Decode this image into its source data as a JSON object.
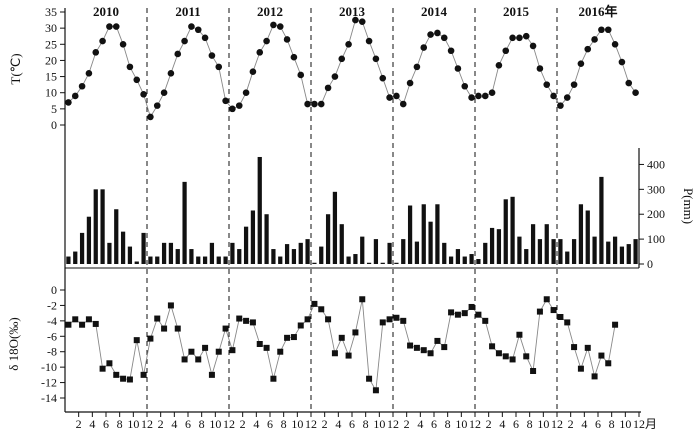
{
  "chart_data": [
    {
      "type": "scatter",
      "ylabel": "T(℃)",
      "ylim": [
        0,
        35
      ],
      "yticks": [
        "0",
        "5",
        "10",
        "15",
        "20",
        "25",
        "30",
        "35"
      ],
      "year_labels": [
        "2010",
        "2011",
        "2012",
        "2013",
        "2014",
        "2015",
        "2016年"
      ],
      "marker_color": "#111111",
      "line_color": "#888888",
      "series": [
        {
          "values": [
            7,
            9,
            12,
            16,
            22.5,
            26,
            30.5,
            30.5,
            25,
            18,
            14,
            9.5,
            2.5,
            6,
            10,
            16,
            22,
            26,
            30.5,
            29.5,
            27,
            21.5,
            18,
            7.5,
            5,
            6,
            10,
            16.5,
            22.5,
            26,
            31,
            30.5,
            26.5,
            21,
            15.5,
            6.5,
            6.5,
            6.5,
            11.5,
            15,
            20.5,
            25,
            32.5,
            32,
            26,
            20.5,
            14.5,
            8.5,
            9,
            6.5,
            13,
            18,
            24,
            28,
            28.5,
            27,
            23,
            17.5,
            12,
            8.5,
            9,
            9,
            10,
            18.5,
            23,
            27,
            27,
            27.5,
            24.5,
            17.5,
            12.5,
            9,
            6,
            8.5,
            12.5,
            19,
            23.5,
            26.5,
            29.5,
            29.5,
            25,
            19.5,
            13,
            10
          ]
        }
      ]
    },
    {
      "type": "bar",
      "ylabel": "P(mm)",
      "ylim": [
        0,
        450
      ],
      "yticks": [
        "0",
        "100",
        "200",
        "300",
        "400"
      ],
      "bar_color": "#111111",
      "series": [
        {
          "values": [
            30,
            50,
            125,
            190,
            300,
            300,
            85,
            220,
            130,
            70,
            10,
            125,
            30,
            30,
            85,
            85,
            60,
            330,
            60,
            30,
            30,
            85,
            30,
            30,
            85,
            60,
            150,
            215,
            430,
            200,
            60,
            30,
            80,
            60,
            85,
            100,
            5,
            70,
            200,
            290,
            160,
            30,
            40,
            110,
            5,
            100,
            5,
            85,
            5,
            100,
            235,
            90,
            240,
            170,
            240,
            85,
            30,
            60,
            30,
            40,
            20,
            85,
            145,
            140,
            260,
            270,
            110,
            60,
            160,
            100,
            160,
            100,
            100,
            50,
            100,
            240,
            215,
            110,
            350,
            90,
            110,
            70,
            80,
            100
          ]
        }
      ]
    },
    {
      "type": "line",
      "ylabel": "δ 18O(‰)",
      "ylim": [
        -14,
        0
      ],
      "yticks": [
        "0",
        "-2",
        "-4",
        "-6",
        "-8",
        "-10",
        "-12",
        "-14"
      ],
      "xticks": [
        "2",
        "4",
        "6",
        "8",
        "10",
        "12",
        "2",
        "4",
        "6",
        "8",
        "10",
        "12",
        "2",
        "4",
        "6",
        "8",
        "10",
        "12",
        "2",
        "4",
        "6",
        "8",
        "10",
        "12",
        "2",
        "4",
        "6",
        "8",
        "10",
        "12",
        "2",
        "4",
        "6",
        "8",
        "10",
        "12",
        "2",
        "4",
        "6",
        "8",
        "10",
        "12"
      ],
      "xunit": "月",
      "marker_color": "#111111",
      "line_color": "#888888",
      "series": [
        {
          "values": [
            -4.5,
            -3.8,
            -4.5,
            -3.8,
            -4.4,
            -10.2,
            -9.5,
            -11,
            -11.5,
            -11.6,
            -6.5,
            -11,
            -6.3,
            -3.7,
            -5,
            -2,
            -5,
            -9,
            -8,
            -9,
            -7.5,
            -11,
            -8,
            -5,
            -7.8,
            -3.7,
            -4,
            -4.2,
            -7,
            -7.5,
            -11.5,
            -8,
            -6.2,
            -6.1,
            -4.6,
            -3.8,
            -1.8,
            -2.5,
            -3.8,
            -8.2,
            -6.2,
            -8.5,
            -5.5,
            -1.2,
            -11.5,
            -13,
            -4.2,
            -3.8,
            -3.6,
            -4,
            -7.2,
            -7.5,
            -7.8,
            -8.2,
            -6.6,
            -7.4,
            -2.9,
            -3.2,
            -3,
            -2.2,
            -3.2,
            -4,
            -7.3,
            -8.2,
            -8.6,
            -9,
            -5.8,
            -8.6,
            -10.5,
            -2.8,
            -1.2,
            -2.6,
            -3.5,
            -4.2,
            -7.4,
            -10.2,
            -7.5,
            -11.2,
            -8.5,
            -9.5,
            -4.5
          ]
        }
      ]
    }
  ]
}
